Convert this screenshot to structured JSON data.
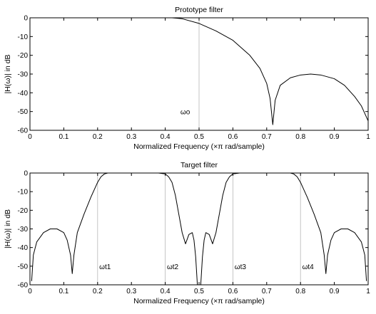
{
  "chart_data": [
    {
      "type": "line",
      "title": "Prototype filter",
      "xlabel": "Normalized Frequency  (×π rad/sample)",
      "ylabel": "|H(ω)| in dB",
      "xlim": [
        0,
        1
      ],
      "ylim": [
        -60,
        0
      ],
      "xticks": [
        "0",
        "0.1",
        "0.2",
        "0.3",
        "0.4",
        "0.5",
        "0.6",
        "0.7",
        "0.8",
        "0.9",
        "1"
      ],
      "yticks": [
        "0",
        "-10",
        "-20",
        "-30",
        "-40",
        "-50",
        "-60"
      ],
      "grid": false,
      "series": [
        {
          "x": [
            0,
            0.42,
            0.45,
            0.5,
            0.55,
            0.6,
            0.65,
            0.68,
            0.7,
            0.71,
            0.718,
            0.725,
            0.74,
            0.77,
            0.8,
            0.83,
            0.86,
            0.9,
            0.93,
            0.96,
            0.98,
            1.0
          ],
          "y": [
            0,
            0,
            -0.5,
            -3,
            -7,
            -12,
            -20,
            -27,
            -35,
            -43,
            -57,
            -44,
            -36,
            -32,
            -30.5,
            -30,
            -30.5,
            -32.5,
            -36,
            -42,
            -47,
            -55
          ]
        }
      ],
      "markers": [
        {
          "label": "ωo",
          "x": 0.5,
          "label_x": 0.445,
          "label_y": -50
        }
      ]
    },
    {
      "type": "line",
      "title": "Target filter",
      "xlabel": "Normalized Frequency  (×π rad/sample)",
      "ylabel": "|H(ω)| in dB",
      "xlim": [
        0,
        1
      ],
      "ylim": [
        -60,
        0
      ],
      "xticks": [
        "0",
        "0.1",
        "0.2",
        "0.3",
        "0.4",
        "0.5",
        "0.6",
        "0.7",
        "0.8",
        "0.9",
        "1"
      ],
      "yticks": [
        "0",
        "-10",
        "-20",
        "-30",
        "-40",
        "-50",
        "-60"
      ],
      "grid": false,
      "series": [
        {
          "x": [
            0.005,
            0.01,
            0.02,
            0.04,
            0.06,
            0.08,
            0.1,
            0.11,
            0.12,
            0.125,
            0.13,
            0.14,
            0.16,
            0.18,
            0.2,
            0.21,
            0.22,
            0.23,
            0.25,
            0.3,
            0.38,
            0.4,
            0.41,
            0.42,
            0.43,
            0.44,
            0.45,
            0.46,
            0.47,
            0.48,
            0.485,
            0.49,
            0.495,
            0.497,
            0.503,
            0.505,
            0.51,
            0.515,
            0.52,
            0.53,
            0.54,
            0.55,
            0.56,
            0.57,
            0.58,
            0.59,
            0.6,
            0.62,
            0.7,
            0.77,
            0.78,
            0.79,
            0.8,
            0.82,
            0.84,
            0.86,
            0.87,
            0.875,
            0.88,
            0.89,
            0.9,
            0.92,
            0.94,
            0.96,
            0.98,
            0.99,
            0.995
          ],
          "y": [
            -58,
            -44,
            -37,
            -32,
            -30,
            -30,
            -32,
            -36,
            -44,
            -54,
            -44,
            -32,
            -22,
            -13,
            -5,
            -2,
            -0.5,
            0,
            0,
            0,
            0,
            -0.5,
            -2,
            -5,
            -12,
            -22,
            -32,
            -38,
            -33,
            -32,
            -36,
            -45,
            -60,
            -60,
            -60,
            -60,
            -45,
            -36,
            -32,
            -33,
            -38,
            -32,
            -22,
            -12,
            -5,
            -2,
            -0.5,
            0,
            0,
            0,
            -0.5,
            -2,
            -5,
            -13,
            -22,
            -32,
            -44,
            -54,
            -44,
            -36,
            -32,
            -30,
            -30,
            -32,
            -37,
            -44,
            -58
          ]
        }
      ],
      "markers": [
        {
          "label": "ωt1",
          "x": 0.2,
          "label_x": 0.205,
          "label_y": -50
        },
        {
          "label": "ωt2",
          "x": 0.4,
          "label_x": 0.405,
          "label_y": -50
        },
        {
          "label": "ωt3",
          "x": 0.6,
          "label_x": 0.605,
          "label_y": -50
        },
        {
          "label": "ωt4",
          "x": 0.8,
          "label_x": 0.805,
          "label_y": -50
        }
      ]
    }
  ]
}
